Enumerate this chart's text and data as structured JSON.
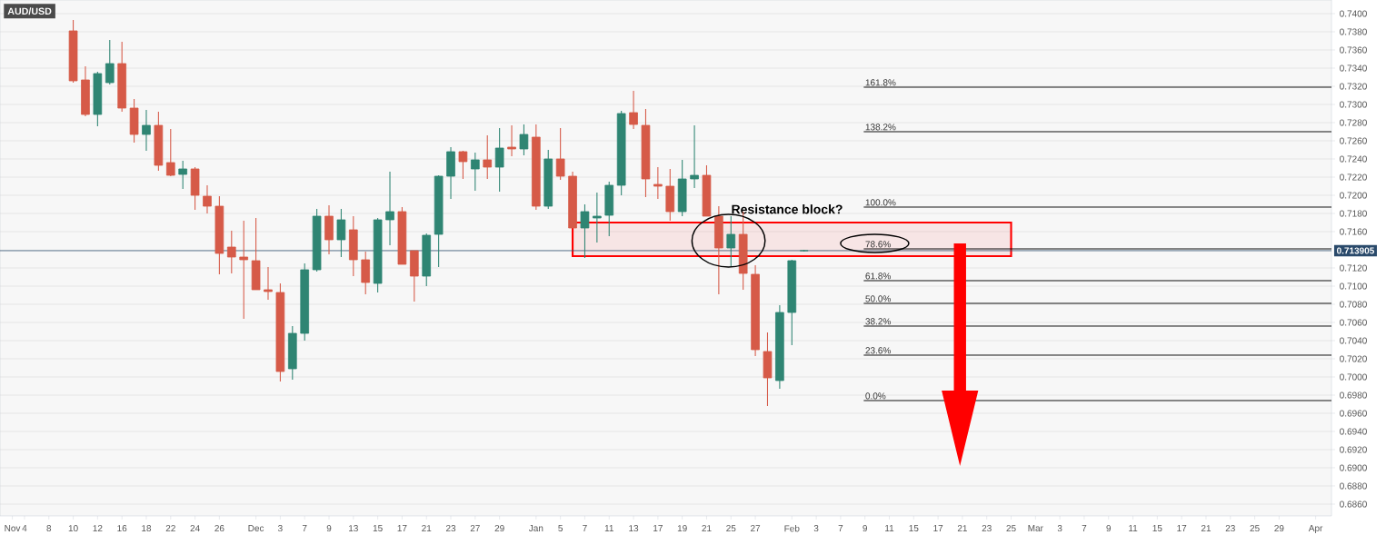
{
  "chart_data": {
    "type": "candlestick",
    "title": "AUD/USD",
    "categories": [
      "Nov",
      "4",
      null,
      "8",
      null,
      "10",
      null,
      "12",
      null,
      "16",
      null,
      "18",
      null,
      "22",
      null,
      "24",
      null,
      "26",
      null,
      null,
      "Dec",
      null,
      "3",
      null,
      "7",
      null,
      "9",
      null,
      "13",
      null,
      "15",
      null,
      "17",
      null,
      "21",
      null,
      "23",
      null,
      "27",
      null,
      "29",
      null,
      null,
      "Jan",
      null,
      "5",
      null,
      "7",
      null,
      "11",
      null,
      "13",
      null,
      "17",
      null,
      "19",
      null,
      "21",
      null,
      "25",
      null,
      "27",
      null,
      null,
      "Feb",
      null,
      "3",
      null,
      "7",
      null,
      "9",
      null,
      "11",
      null,
      "15",
      null,
      "17",
      null,
      "21",
      null,
      "23",
      null,
      "25",
      null,
      "Mar",
      null,
      "3",
      null,
      "7",
      null,
      "9",
      null,
      "11",
      null,
      "15",
      null,
      "17",
      null,
      "21",
      null,
      "23",
      null,
      "25",
      null,
      "29",
      null,
      null,
      "Apr"
    ],
    "ohlc": [
      null,
      null,
      null,
      null,
      null,
      [
        0.7381,
        0.7393,
        0.7324,
        0.7326
      ],
      [
        0.7327,
        0.7342,
        0.7287,
        0.7289
      ],
      [
        0.7289,
        0.7336,
        0.7276,
        0.7334
      ],
      [
        0.7324,
        0.7371,
        0.7322,
        0.7345
      ],
      [
        0.7345,
        0.7369,
        0.7292,
        0.7296
      ],
      [
        0.7296,
        0.7306,
        0.7258,
        0.7267
      ],
      [
        0.7267,
        0.7294,
        0.7249,
        0.7277
      ],
      [
        0.7277,
        0.7292,
        0.7227,
        0.7233
      ],
      [
        0.7236,
        0.7273,
        0.7221,
        0.7222
      ],
      [
        0.7223,
        0.7238,
        0.7207,
        0.7229
      ],
      [
        0.7229,
        0.7231,
        0.7184,
        0.72
      ],
      [
        0.7199,
        0.7211,
        0.718,
        0.7188
      ],
      [
        0.7188,
        0.7199,
        0.7113,
        0.7136
      ],
      [
        0.7143,
        0.7161,
        0.7114,
        0.7132
      ],
      [
        0.7132,
        0.7172,
        0.7064,
        0.7129
      ],
      [
        0.7128,
        0.7175,
        0.7096,
        0.7096
      ],
      [
        0.7096,
        0.7121,
        0.7085,
        0.7094
      ],
      [
        0.7093,
        0.7103,
        0.6995,
        0.7006
      ],
      [
        0.7009,
        0.7056,
        0.6997,
        0.7048
      ],
      [
        0.7048,
        0.7125,
        0.704,
        0.7118
      ],
      [
        0.7118,
        0.7185,
        0.7116,
        0.7177
      ],
      [
        0.7177,
        0.7189,
        0.7135,
        0.7151
      ],
      [
        0.7151,
        0.7185,
        0.7132,
        0.7173
      ],
      [
        0.7162,
        0.7177,
        0.7111,
        0.7129
      ],
      [
        0.7129,
        0.7138,
        0.7091,
        0.7104
      ],
      [
        0.7103,
        0.7175,
        0.7093,
        0.7173
      ],
      [
        0.7173,
        0.7226,
        0.7145,
        0.7182
      ],
      [
        0.7182,
        0.7187,
        0.7124,
        0.7124
      ],
      [
        0.7139,
        0.7139,
        0.7083,
        0.7111
      ],
      [
        0.7111,
        0.7158,
        0.71,
        0.7156
      ],
      [
        0.7157,
        0.7222,
        0.7121,
        0.7221
      ],
      [
        0.7221,
        0.7253,
        0.7196,
        0.7248
      ],
      [
        0.7248,
        0.7249,
        0.7218,
        0.7237
      ],
      [
        0.7229,
        0.7247,
        0.7205,
        0.7239
      ],
      [
        0.7239,
        0.7266,
        0.7218,
        0.7231
      ],
      [
        0.7231,
        0.7274,
        0.7204,
        0.7252
      ],
      [
        0.7253,
        0.7277,
        0.7243,
        0.7251
      ],
      [
        0.7251,
        0.7278,
        0.7244,
        0.7267
      ],
      [
        0.7264,
        0.7278,
        0.7184,
        0.7188
      ],
      [
        0.7188,
        0.725,
        0.7185,
        0.724
      ],
      [
        0.724,
        0.7274,
        0.7217,
        0.7221
      ],
      [
        0.7221,
        0.7226,
        0.7164,
        0.7164
      ],
      [
        0.7164,
        0.719,
        0.7131,
        0.7182
      ],
      [
        0.7175,
        0.7203,
        0.7148,
        0.7177
      ],
      [
        0.7178,
        0.7215,
        0.7155,
        0.7211
      ],
      [
        0.7211,
        0.7293,
        0.72,
        0.729
      ],
      [
        0.7291,
        0.7315,
        0.7273,
        0.7278
      ],
      [
        0.7277,
        0.7295,
        0.7198,
        0.7218
      ],
      [
        0.7212,
        0.7231,
        0.7196,
        0.721
      ],
      [
        0.721,
        0.7229,
        0.7172,
        0.7182
      ],
      [
        0.7182,
        0.7239,
        0.7177,
        0.7218
      ],
      [
        0.7218,
        0.7277,
        0.7208,
        0.7222
      ],
      [
        0.7222,
        0.7233,
        0.7177,
        0.7177
      ],
      [
        0.7177,
        0.7188,
        0.7091,
        0.7142
      ],
      [
        0.7142,
        0.7177,
        0.7122,
        0.7157
      ],
      [
        0.7157,
        0.7182,
        0.7096,
        0.7114
      ],
      [
        0.7113,
        0.7123,
        0.7023,
        0.703
      ],
      [
        0.7028,
        0.7049,
        0.6968,
        0.6999
      ],
      [
        0.6996,
        0.7079,
        0.6987,
        0.7071
      ],
      [
        0.7071,
        0.7129,
        0.7035,
        0.7128
      ],
      [
        0.7139,
        0.714,
        0.7138,
        0.7139
      ],
      null,
      null,
      null,
      null,
      null,
      null,
      null,
      null,
      null,
      null,
      null,
      null,
      null,
      null,
      null,
      null,
      null,
      null,
      null,
      null,
      null,
      null,
      null,
      null,
      null,
      null,
      null,
      null,
      null,
      null,
      null,
      null,
      null,
      null,
      null,
      null,
      null,
      null,
      null,
      null,
      null,
      null
    ],
    "colors": [
      null,
      null,
      null,
      null,
      null,
      "#d65a48",
      "#d65a48",
      "#2f8573",
      "#2f8573",
      "#d65a48",
      "#d65a48",
      "#2f8573",
      "#d65a48",
      "#d65a48",
      "#2f8573",
      "#d65a48",
      "#d65a48",
      "#d65a48",
      "#d65a48",
      "#d65a48",
      "#d65a48",
      "#d65a48",
      "#d65a48",
      "#2f8573",
      "#2f8573",
      "#2f8573",
      "#d65a48",
      "#2f8573",
      "#d65a48",
      "#d65a48",
      "#2f8573",
      "#2f8573",
      "#d65a48",
      "#d65a48",
      "#2f8573",
      "#2f8573",
      "#2f8573",
      "#d65a48",
      "#2f8573",
      "#d65a48",
      "#2f8573",
      "#d65a48",
      "#2f8573",
      "#d65a48",
      "#2f8573",
      "#d65a48",
      "#d65a48",
      "#2f8573",
      "#2f8573",
      "#2f8573",
      "#2f8573",
      "#d65a48",
      "#d65a48",
      "#d65a48",
      "#d65a48",
      "#2f8573",
      "#2f8573",
      "#d65a48",
      "#d65a48",
      "#2f8573",
      "#d65a48",
      "#d65a48",
      "#d65a48",
      "#2f8573",
      "#2f8573",
      "#2f8573",
      null,
      null,
      null,
      null,
      null,
      null,
      null,
      null,
      null,
      null,
      null,
      null,
      null,
      null,
      null,
      null,
      null,
      null,
      null,
      null,
      null,
      null,
      null,
      null,
      null,
      null,
      null,
      null,
      null,
      null,
      null,
      null,
      null,
      null,
      null,
      null,
      null,
      null,
      null,
      null,
      null,
      null
    ],
    "ylim": [
      0.6847,
      0.7415
    ],
    "yticks": [
      {
        "value": 0.686,
        "label": "0.6860"
      },
      {
        "value": 0.688,
        "label": "0.6880"
      },
      {
        "value": 0.69,
        "label": "0.6900"
      },
      {
        "value": 0.692,
        "label": "0.6920"
      },
      {
        "value": 0.694,
        "label": "0.6940"
      },
      {
        "value": 0.696,
        "label": "0.6960"
      },
      {
        "value": 0.698,
        "label": "0.6980"
      },
      {
        "value": 0.7,
        "label": "0.7000"
      },
      {
        "value": 0.702,
        "label": "0.7020"
      },
      {
        "value": 0.704,
        "label": "0.7040"
      },
      {
        "value": 0.706,
        "label": "0.7060"
      },
      {
        "value": 0.708,
        "label": "0.7080"
      },
      {
        "value": 0.71,
        "label": "0.7100"
      },
      {
        "value": 0.712,
        "label": "0.7120"
      },
      {
        "value": 0.716,
        "label": "0.7160"
      },
      {
        "value": 0.718,
        "label": "0.7180"
      },
      {
        "value": 0.72,
        "label": "0.7200"
      },
      {
        "value": 0.722,
        "label": "0.7220"
      },
      {
        "value": 0.724,
        "label": "0.7240"
      },
      {
        "value": 0.726,
        "label": "0.7260"
      },
      {
        "value": 0.728,
        "label": "0.7280"
      },
      {
        "value": 0.73,
        "label": "0.7300"
      },
      {
        "value": 0.732,
        "label": "0.7320"
      },
      {
        "value": 0.734,
        "label": "0.7340"
      },
      {
        "value": 0.736,
        "label": "0.7360"
      },
      {
        "value": 0.738,
        "label": "0.7380"
      },
      {
        "value": 0.74,
        "label": "0.7400"
      }
    ],
    "grid": "y",
    "ref_lines": [
      {
        "axis": "y",
        "value": 0.713905,
        "label": "0.713905",
        "color": "#2a4a6b"
      },
      {
        "axis": "y",
        "value": 0.7319,
        "color": "#000000"
      },
      {
        "axis": "y",
        "value": 0.727,
        "color": "#000000"
      },
      {
        "axis": "y",
        "value": 0.7187,
        "color": "#000000"
      },
      {
        "axis": "y",
        "value": 0.7141,
        "color": "#000000"
      },
      {
        "axis": "y",
        "value": 0.7106,
        "color": "#000000"
      },
      {
        "axis": "y",
        "value": 0.7081,
        "color": "#000000"
      },
      {
        "axis": "y",
        "value": 0.7056,
        "color": "#000000"
      },
      {
        "axis": "y",
        "value": 0.7024,
        "color": "#000000"
      },
      {
        "axis": "y",
        "value": 0.6974,
        "color": "#000000"
      }
    ],
    "annotations": [
      {
        "text": "161.8%",
        "y": 0.7319
      },
      {
        "text": "138.2%",
        "y": 0.727
      },
      {
        "text": "100.0%",
        "y": 0.7187
      },
      {
        "text": "78.6%",
        "y": 0.7141
      },
      {
        "text": "61.8%",
        "y": 0.7106
      },
      {
        "text": "50.0%",
        "y": 0.7081
      },
      {
        "text": "38.2%",
        "y": 0.7056
      },
      {
        "text": "23.6%",
        "y": 0.7024
      },
      {
        "text": "0.0%",
        "y": 0.6974
      }
    ],
    "bands": [
      {
        "axis": "y",
        "from": 0.7133,
        "to": 0.717,
        "label": "Resistance block?",
        "color": "#ff0000"
      }
    ]
  }
}
